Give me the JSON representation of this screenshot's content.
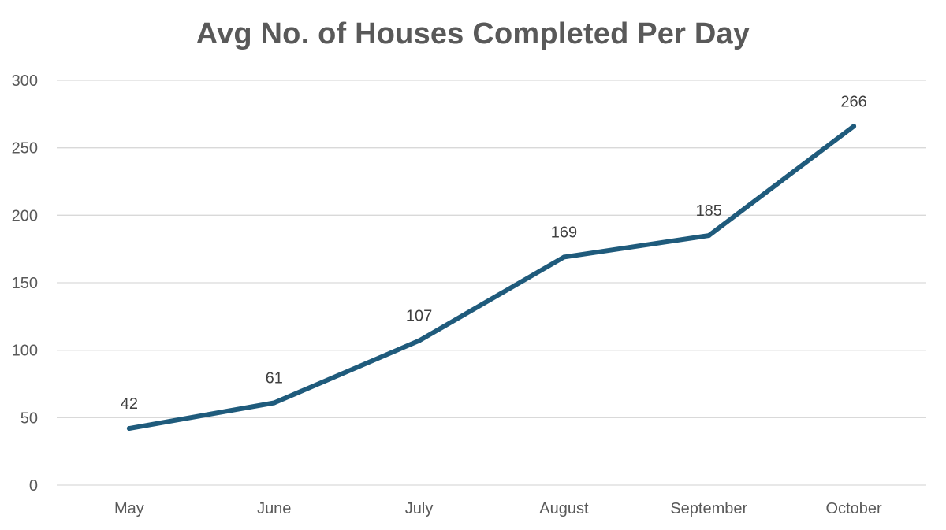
{
  "chart_data": {
    "type": "line",
    "title": "Avg No. of Houses Completed Per Day",
    "xlabel": "",
    "ylabel": "",
    "categories": [
      "May",
      "June",
      "July",
      "August",
      "September",
      "October"
    ],
    "series": [
      {
        "values": [
          42,
          61,
          107,
          169,
          185,
          266
        ],
        "color": "#1f5b7c"
      }
    ],
    "data_labels": [
      "42",
      "61",
      "107",
      "169",
      "185",
      "266"
    ],
    "ylim": [
      0,
      300
    ],
    "yticks": [
      0,
      50,
      100,
      150,
      200,
      250,
      300
    ],
    "ytick_labels": [
      "0",
      "50",
      "100",
      "150",
      "200",
      "250",
      "300"
    ],
    "grid": true,
    "gridline_color": "#d9d9d9",
    "legend": "none"
  }
}
